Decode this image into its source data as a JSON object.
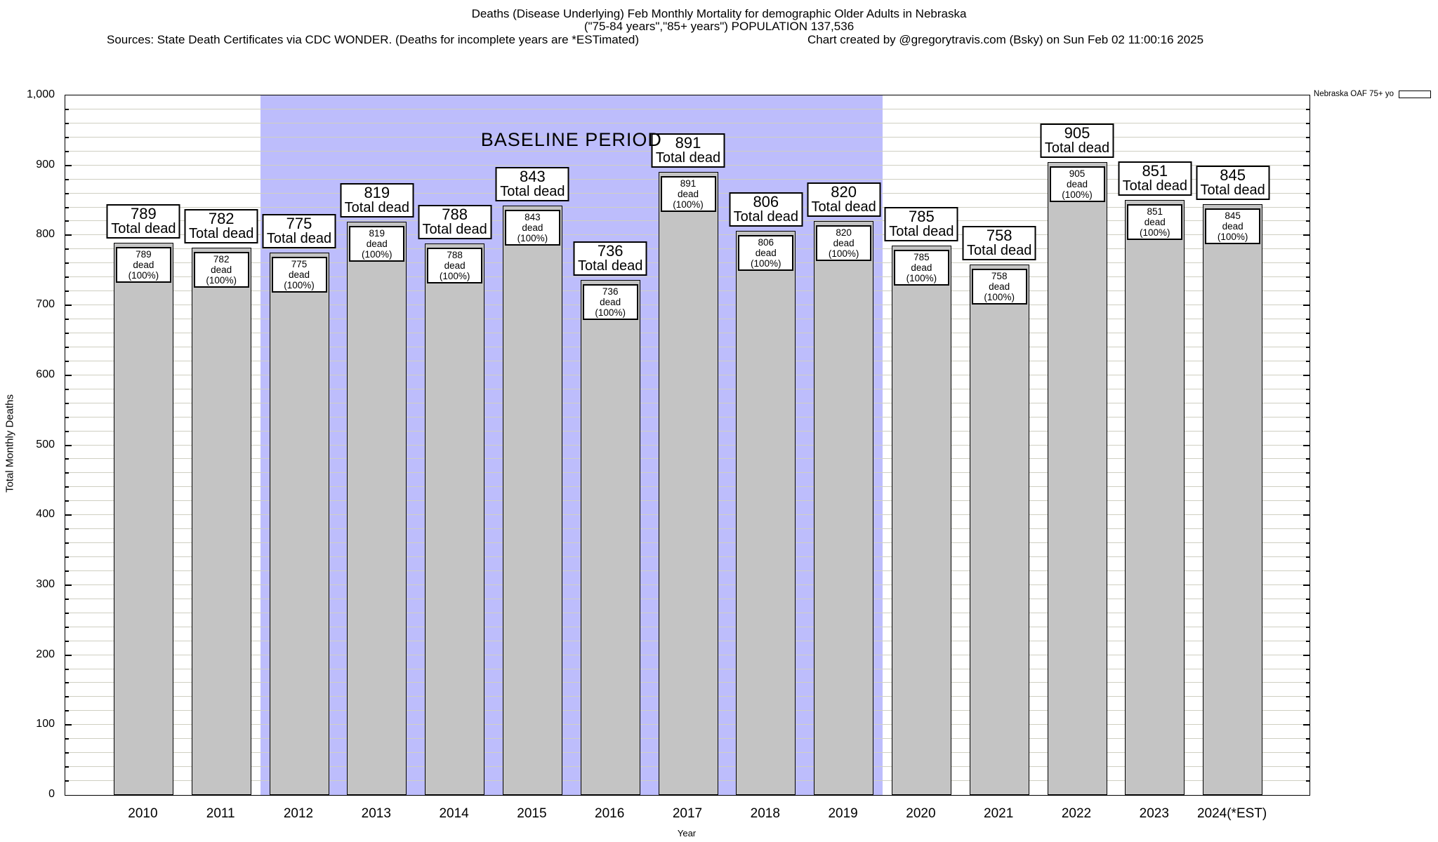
{
  "header": {
    "title_line1": "Deaths (Disease Underlying) Feb Monthly Mortality for demographic Older Adults in Nebraska",
    "title_line2": "(\"75-84 years\",\"85+ years\") POPULATION 137,536",
    "sources": "Sources: State Death Certificates via CDC WONDER. (Deaths for incomplete years are *ESTimated)",
    "credit": "Chart created by @gregorytravis.com (Bsky) on Sun Feb 02 11:00:16 2025"
  },
  "legend": {
    "label": "Nebraska OAF 75+ yo",
    "swatch_color": "#c4c4c4",
    "position": "top-right"
  },
  "annotations": {
    "baseline_label": "BASELINE PERIOD"
  },
  "axes": {
    "y_title": "Total Monthly Deaths",
    "x_title": "Year",
    "y_min": 0,
    "y_max": 1000,
    "y_major_step": 100,
    "y_minor_step": 20,
    "y_tick_labels": [
      "0",
      "100",
      "200",
      "300",
      "400",
      "500",
      "600",
      "700",
      "800",
      "900",
      "1,000"
    ]
  },
  "chart_data": {
    "type": "bar",
    "title": "Deaths (Disease Underlying) Feb Monthly Mortality for demographic Older Adults in Nebraska (\"75-84 years\",\"85+ years\") POPULATION 137,536",
    "xlabel": "Year",
    "ylabel": "Total Monthly Deaths",
    "ylim": [
      0,
      1000
    ],
    "grid": true,
    "legend_position": "top-right",
    "series_name": "Nebraska OAF 75+ yo",
    "categories": [
      "2010",
      "2011",
      "2012",
      "2013",
      "2014",
      "2015",
      "2016",
      "2017",
      "2018",
      "2019",
      "2020",
      "2021",
      "2022",
      "2023",
      "2024(*EST)"
    ],
    "values": [
      789,
      782,
      775,
      819,
      788,
      843,
      736,
      891,
      806,
      820,
      785,
      758,
      905,
      851,
      845
    ],
    "bar_top_label_suffix": "Total dead",
    "bar_inner_label_suffix": "dead (100%)",
    "baseline_period": {
      "start_category": "2012",
      "end_category": "2019"
    },
    "bar_color": "#c4c4c4",
    "baseline_band_color": "#bdbdfc",
    "grid_color": "#cfcfc2"
  }
}
